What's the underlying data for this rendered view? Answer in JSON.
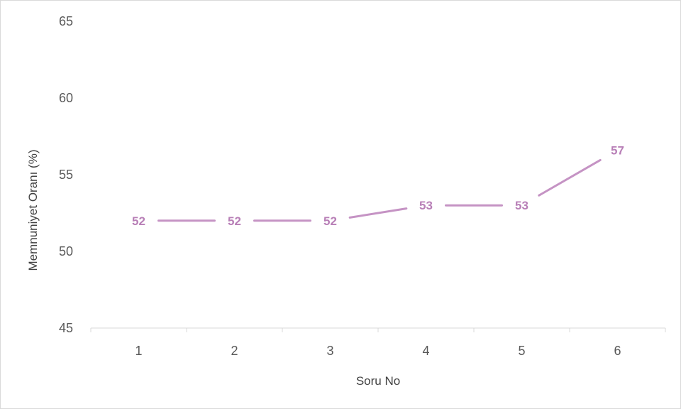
{
  "chart_data": {
    "type": "line",
    "title": "",
    "xlabel": "Soru No",
    "ylabel": "Memnuniyet Oranı (%)",
    "categories": [
      "1",
      "2",
      "3",
      "4",
      "5",
      "6"
    ],
    "series": [
      {
        "values": [
          52,
          52,
          52,
          53,
          53,
          56.6
        ]
      }
    ],
    "data_labels": [
      "52",
      "52",
      "52",
      "53",
      "53",
      "57"
    ],
    "ylim": [
      45,
      65
    ],
    "yticks": [
      "45",
      "50",
      "55",
      "60",
      "65"
    ],
    "grid": false,
    "legend": "none",
    "line_color": "#c593c4",
    "label_color": "#b87fb7",
    "axis_color": "#d9d9d9"
  }
}
